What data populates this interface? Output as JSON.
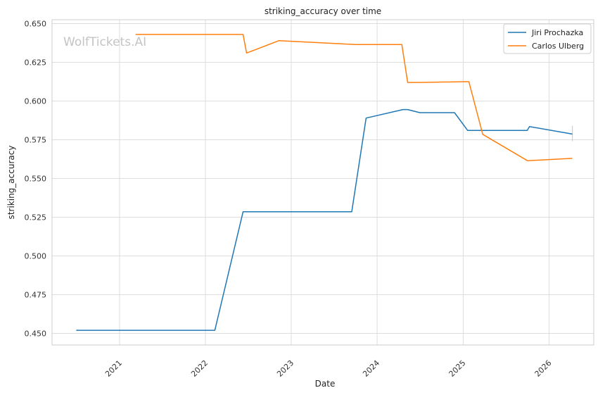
{
  "watermark": "WolfTickets.AI",
  "chart_data": {
    "type": "line",
    "title": "striking_accuracy over time",
    "xlabel": "Date",
    "ylabel": "striking_accuracy",
    "x_ticks": [
      "2021",
      "2022",
      "2023",
      "2024",
      "2025",
      "2026"
    ],
    "y_ticks": [
      "0.450",
      "0.475",
      "0.500",
      "0.525",
      "0.550",
      "0.575",
      "0.600",
      "0.625",
      "0.650"
    ],
    "xlim": [
      "2020-03-20",
      "2026-07-10"
    ],
    "ylim": [
      0.4425,
      0.6525
    ],
    "grid": true,
    "legend_position": "top-right",
    "series": [
      {
        "name": "Jiri Prochazka",
        "color": "#1f77b4",
        "points": [
          [
            "2020-07-01",
            0.452
          ],
          [
            "2022-02-10",
            0.452
          ],
          [
            "2022-06-10",
            0.5285
          ],
          [
            "2023-09-15",
            0.5285
          ],
          [
            "2023-11-15",
            0.589
          ],
          [
            "2024-04-20",
            0.5945
          ],
          [
            "2024-05-10",
            0.5945
          ],
          [
            "2024-07-01",
            0.5925
          ],
          [
            "2024-11-25",
            0.5925
          ],
          [
            "2025-01-20",
            0.581
          ],
          [
            "2025-09-30",
            0.581
          ],
          [
            "2025-10-10",
            0.5835
          ],
          [
            "2026-04-10",
            0.5787
          ]
        ],
        "error_bar": [
          "2026-04-10",
          0.574,
          0.584
        ]
      },
      {
        "name": "Carlos Ulberg",
        "color": "#ff7f0e",
        "points": [
          [
            "2021-03-10",
            0.643
          ],
          [
            "2022-06-10",
            0.643
          ],
          [
            "2022-06-25",
            0.631
          ],
          [
            "2022-11-10",
            0.639
          ],
          [
            "2023-10-01",
            0.6365
          ],
          [
            "2024-04-15",
            0.6365
          ],
          [
            "2024-05-10",
            0.612
          ],
          [
            "2024-07-01",
            0.612
          ],
          [
            "2025-01-10",
            0.6125
          ],
          [
            "2025-01-25",
            0.6125
          ],
          [
            "2025-03-25",
            0.5785
          ],
          [
            "2025-10-01",
            0.5615
          ],
          [
            "2026-04-10",
            0.563
          ]
        ]
      }
    ]
  }
}
